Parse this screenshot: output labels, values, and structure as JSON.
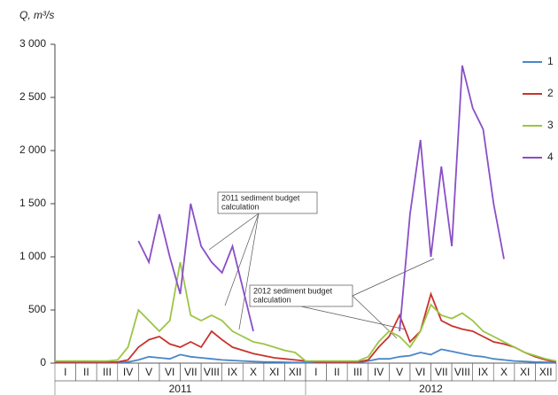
{
  "chart_data": {
    "type": "line",
    "y_label": "Q, m³/s",
    "x": [
      0,
      0.5,
      1,
      1.5,
      2,
      2.5,
      3,
      3.5,
      4,
      4.5,
      5,
      5.5,
      6,
      6.5,
      7,
      7.5,
      8,
      8.5,
      9,
      9.5,
      10,
      10.5,
      11,
      11.5,
      12,
      12.5,
      13,
      13.5,
      14,
      14.5,
      15,
      15.5,
      16,
      16.5,
      17,
      17.5,
      18,
      18.5,
      19,
      19.5,
      20,
      20.5,
      21,
      21.5,
      22,
      22.5,
      23,
      23.5,
      24
    ],
    "xlim": [
      0,
      24
    ],
    "month_labels": [
      "I",
      "II",
      "III",
      "IV",
      "V",
      "VI",
      "VII",
      "VIII",
      "IX",
      "X",
      "XI",
      "XII",
      "I",
      "II",
      "III",
      "IV",
      "V",
      "VI",
      "VII",
      "VIII",
      "IX",
      "X",
      "XI",
      "XII"
    ],
    "years": [
      "2011",
      "2012"
    ],
    "ylim": [
      0,
      3000
    ],
    "yticks": [
      0,
      500,
      {
        "value": 1000,
        "label": "1 000"
      },
      {
        "value": 1500,
        "label": "1 500"
      },
      {
        "value": 2000,
        "label": "2 000"
      },
      {
        "value": 2500,
        "label": "2 500"
      },
      {
        "value": 3000,
        "label": "3 000"
      }
    ],
    "series": [
      {
        "name": "1",
        "color": "#4a86c8",
        "values": [
          5,
          5,
          5,
          5,
          5,
          5,
          5,
          10,
          30,
          60,
          50,
          40,
          80,
          60,
          50,
          40,
          30,
          25,
          20,
          15,
          12,
          10,
          8,
          6,
          5,
          5,
          5,
          5,
          5,
          5,
          20,
          40,
          40,
          60,
          70,
          100,
          80,
          130,
          110,
          90,
          70,
          60,
          40,
          30,
          20,
          15,
          10,
          8,
          5
        ]
      },
      {
        "name": "2",
        "color": "#c8342c",
        "values": [
          10,
          10,
          10,
          10,
          10,
          10,
          10,
          30,
          150,
          220,
          250,
          180,
          150,
          200,
          150,
          300,
          220,
          150,
          120,
          90,
          70,
          50,
          40,
          30,
          20,
          10,
          10,
          10,
          10,
          10,
          30,
          150,
          250,
          450,
          200,
          300,
          650,
          400,
          350,
          320,
          300,
          250,
          200,
          180,
          150,
          100,
          60,
          30,
          10
        ]
      },
      {
        "name": "3",
        "color": "#9cc544",
        "values": [
          20,
          20,
          20,
          20,
          20,
          20,
          30,
          150,
          500,
          400,
          300,
          400,
          950,
          450,
          400,
          450,
          400,
          300,
          250,
          200,
          180,
          150,
          120,
          100,
          20,
          20,
          20,
          20,
          20,
          20,
          60,
          200,
          300,
          250,
          150,
          300,
          550,
          450,
          420,
          470,
          400,
          300,
          250,
          200,
          150,
          100,
          70,
          40,
          20
        ]
      },
      {
        "name": "4",
        "color": "#8a4fc6",
        "values": [
          null,
          null,
          null,
          null,
          null,
          null,
          null,
          null,
          1150,
          950,
          1400,
          1000,
          650,
          1500,
          1100,
          950,
          850,
          1100,
          700,
          300,
          null,
          null,
          null,
          null,
          null,
          null,
          null,
          null,
          null,
          null,
          null,
          null,
          null,
          300,
          1400,
          2100,
          1000,
          1850,
          1100,
          2800,
          2400,
          2200,
          1500,
          980,
          null,
          null,
          null,
          null,
          null
        ]
      }
    ],
    "annotations": [
      {
        "lines": [
          "2011 sediment budget",
          "calculation"
        ]
      },
      {
        "lines": [
          "2012 sediment budget",
          "calculation"
        ]
      }
    ]
  }
}
